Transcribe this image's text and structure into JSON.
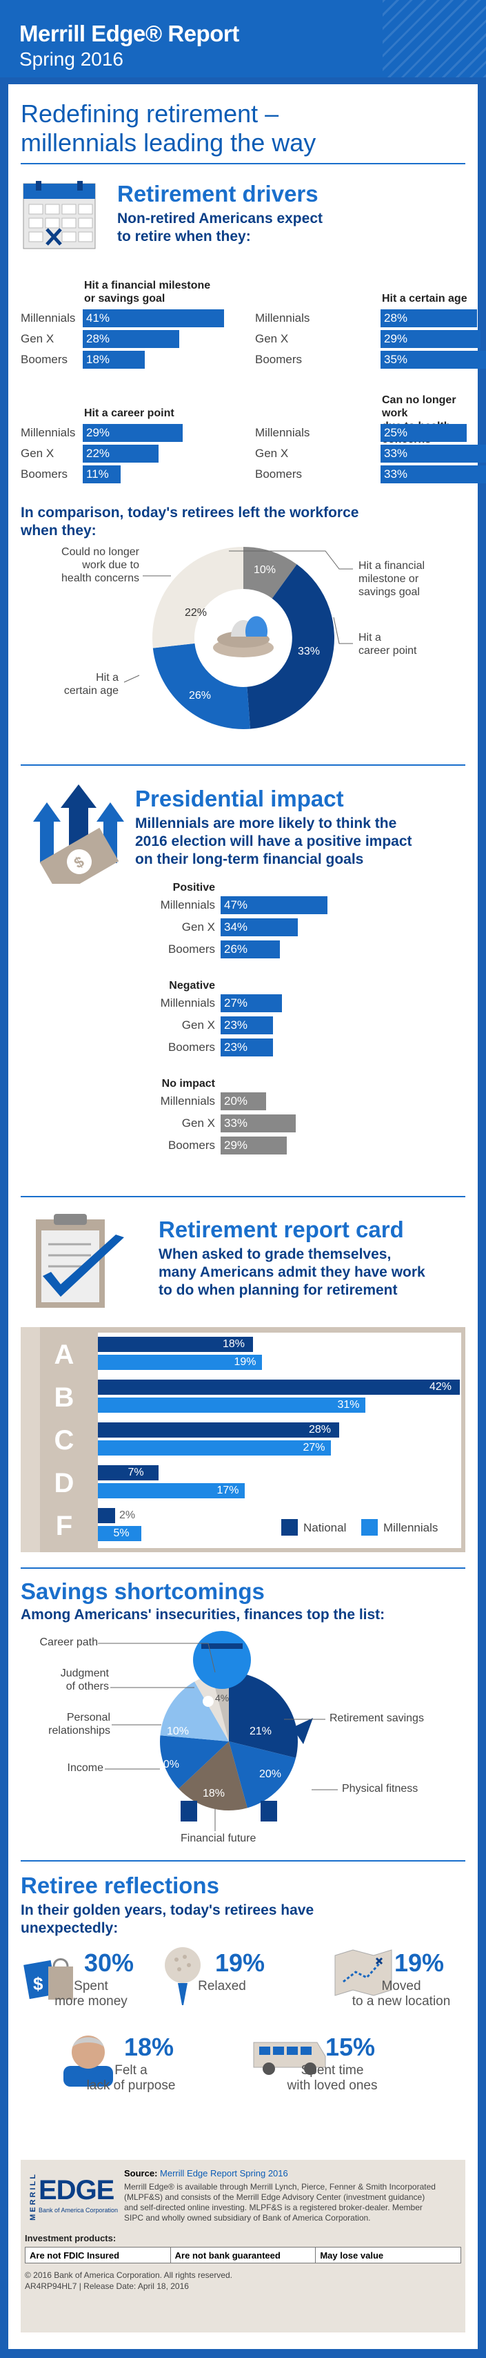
{
  "header": {
    "title": "Merrill Edge® Report",
    "subtitle": "Spring 2016"
  },
  "headline": [
    "Redefining retirement –",
    "millennials leading the way"
  ],
  "drivers": {
    "title": "Retirement drivers",
    "subtitle": [
      "Non-retired Americans expect",
      "to retire when they:"
    ],
    "groups": [
      {
        "title": [
          "Hit a financial milestone",
          "or savings goal"
        ],
        "rows": [
          [
            "Millennials",
            "41%",
            41
          ],
          [
            "Gen X",
            "28%",
            28
          ],
          [
            "Boomers",
            "18%",
            18
          ]
        ]
      },
      {
        "title": [
          "Hit a certain age"
        ],
        "rows": [
          [
            "Millennials",
            "28%",
            28
          ],
          [
            "Gen X",
            "29%",
            29
          ],
          [
            "Boomers",
            "35%",
            35
          ]
        ]
      },
      {
        "title": [
          "Hit a career point"
        ],
        "rows": [
          [
            "Millennials",
            "29%",
            29
          ],
          [
            "Gen X",
            "22%",
            22
          ],
          [
            "Boomers",
            "11%",
            11
          ]
        ]
      },
      {
        "title": [
          "Can no longer work",
          "due to health concerns"
        ],
        "rows": [
          [
            "Millennials",
            "25%",
            25
          ],
          [
            "Gen X",
            "33%",
            33
          ],
          [
            "Boomers",
            "33%",
            33
          ]
        ]
      }
    ]
  },
  "retirees": {
    "title": [
      "In comparison, today's retirees left the workforce",
      "when they:"
    ],
    "labels": {
      "health": [
        "Could no longer",
        "work due to",
        "health concerns"
      ],
      "milestone": [
        "Hit a financial",
        "milestone or",
        "savings goal"
      ],
      "career": [
        "Hit a",
        "career point"
      ],
      "age": [
        "Hit a",
        "certain age"
      ]
    },
    "values": {
      "milestone": "10%",
      "career": "33%",
      "age": "26%",
      "health": "22%"
    }
  },
  "presidential": {
    "title": "Presidential impact",
    "subtitle": [
      "Millennials are more likely to think the",
      "2016 election will have a positive impact",
      "on their long-term financial goals"
    ],
    "groups": [
      {
        "title": "Positive",
        "color": "#1767c0",
        "rows": [
          [
            "Millennials",
            "47%",
            47
          ],
          [
            "Gen X",
            "34%",
            34
          ],
          [
            "Boomers",
            "26%",
            26
          ]
        ]
      },
      {
        "title": "Negative",
        "color": "#1767c0",
        "rows": [
          [
            "Millennials",
            "27%",
            27
          ],
          [
            "Gen X",
            "23%",
            23
          ],
          [
            "Boomers",
            "23%",
            23
          ]
        ]
      },
      {
        "title": "No impact",
        "color": "#888888",
        "rows": [
          [
            "Millennials",
            "20%",
            20
          ],
          [
            "Gen X",
            "33%",
            33
          ],
          [
            "Boomers",
            "29%",
            29
          ]
        ]
      }
    ]
  },
  "reportcard": {
    "title": "Retirement report card",
    "subtitle": [
      "When asked to grade themselves,",
      "many Americans admit they have work",
      "to do when planning for retirement"
    ],
    "grades": [
      "A",
      "B",
      "C",
      "D",
      "F"
    ],
    "national": [
      "18%",
      "42%",
      "28%",
      "7%",
      "2%"
    ],
    "millennials": [
      "19%",
      "31%",
      "27%",
      "17%",
      "5%"
    ],
    "legend": {
      "national": "National",
      "millennials": "Millennials"
    }
  },
  "chart_data": [
    {
      "type": "bar",
      "title": "Retirement report card",
      "categories": [
        "A",
        "B",
        "C",
        "D",
        "F"
      ],
      "series": [
        {
          "name": "National",
          "values": [
            18,
            42,
            28,
            7,
            2
          ]
        },
        {
          "name": "Millennials",
          "values": [
            19,
            31,
            27,
            17,
            5
          ]
        }
      ]
    },
    {
      "type": "pie",
      "title": "Savings shortcomings",
      "categories": [
        "Retirement savings",
        "Physical fitness",
        "Financial future",
        "Income",
        "Personal relationships",
        "Judgment of others",
        "Career path"
      ],
      "values": [
        21,
        20,
        18,
        10,
        10,
        4,
        4
      ]
    }
  ],
  "savings": {
    "title": "Savings shortcomings",
    "subtitle": "Among Americans' insecurities, finances top the list:",
    "labels": {
      "career": "Career path",
      "judgment": [
        "Judgment",
        "of others"
      ],
      "personal": [
        "Personal",
        "relationships"
      ],
      "income": "Income",
      "retirement": "Retirement savings",
      "fitness": "Physical fitness",
      "future": "Financial future"
    },
    "values": {
      "retirement": "21%",
      "fitness": "20%",
      "future": "18%",
      "income": "10%",
      "personal": "10%",
      "judgment": "4%"
    }
  },
  "reflections": {
    "title": "Retiree reflections",
    "subtitle": [
      "In their golden years, today's retirees have",
      "unexpectedly:"
    ],
    "items": [
      {
        "pct": "30%",
        "text": [
          "Spent",
          "more money"
        ]
      },
      {
        "pct": "19%",
        "text": [
          "Relaxed"
        ]
      },
      {
        "pct": "19%",
        "text": [
          "Moved",
          "to a new location"
        ]
      },
      {
        "pct": "18%",
        "text": [
          "Felt a",
          "lack of purpose"
        ]
      },
      {
        "pct": "15%",
        "text": [
          "Spent time",
          "with loved ones"
        ]
      }
    ]
  },
  "footer": {
    "logo_top": "MERRILL",
    "logo_main": "EDGE",
    "logo_sub": "Bank of America Corporation",
    "source_label": "Source:",
    "source": "Merrill Edge Report Spring 2016",
    "body": [
      "Merrill Edge® is available through Merrill Lynch, Pierce, Fenner & Smith Incorporated",
      "(MLPF&S) and consists of the Merrill Edge Advisory Center (investment guidance)",
      "and self-directed online investing. MLPF&S is a registered broker-dealer. Member",
      "SIPC and wholly owned subsidiary of Bank of America Corporation."
    ],
    "inv": "Investment products:",
    "disc": [
      "Are not FDIC Insured",
      "Are not bank guaranteed",
      "May lose value"
    ],
    "copy": "© 2016 Bank of America Corporation. All rights reserved.",
    "code": "AR4RP94HL7 | Release Date: April 18, 2016"
  }
}
